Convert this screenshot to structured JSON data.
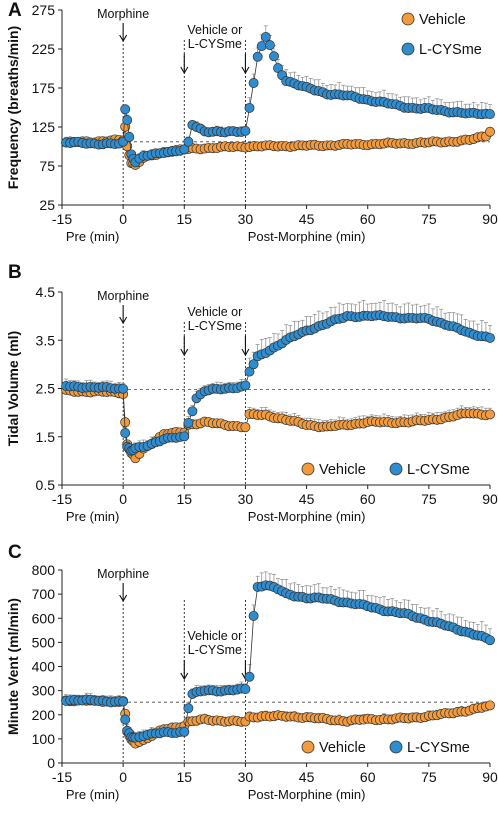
{
  "colors": {
    "vehicle": "#f29a3c",
    "lcysme": "#2e8ccf",
    "marker_edge": "#333333"
  },
  "chart_data": [
    {
      "type": "line",
      "panel_label": "A",
      "ylabel": "Frequency (breaths/min)",
      "xlabel_pre": "Pre (min)",
      "xlabel_post": "Post-Morphine (min)",
      "xlim": [
        -15,
        90
      ],
      "ylim": [
        25,
        275
      ],
      "xticks": [
        -15,
        0,
        15,
        30,
        45,
        60,
        75,
        90
      ],
      "yticks": [
        25,
        75,
        125,
        175,
        225,
        275
      ],
      "baseline": 106,
      "event_lines": [
        0,
        15,
        30
      ],
      "annotations": [
        {
          "text": "Morphine",
          "x": 0
        },
        {
          "text": "Vehicle or",
          "text2": "L-CYSme",
          "x": 15
        }
      ],
      "legend": "top-right",
      "series": [
        {
          "name": "Vehicle",
          "color_key": "vehicle",
          "points": [
            [
              -14,
              105
            ],
            [
              0,
              108
            ],
            [
              0.5,
              125
            ],
            [
              1,
              100
            ],
            [
              2,
              80
            ],
            [
              3,
              76
            ],
            [
              5,
              85
            ],
            [
              10,
              93
            ],
            [
              15,
              96
            ],
            [
              20,
              98
            ],
            [
              30,
              100
            ],
            [
              45,
              101
            ],
            [
              60,
              103
            ],
            [
              75,
              105
            ],
            [
              85,
              108
            ],
            [
              89,
              114
            ],
            [
              90,
              120
            ]
          ],
          "err": 5
        },
        {
          "name": "L-CYSme",
          "color_key": "lcysme",
          "points": [
            [
              -14,
              105
            ],
            [
              -1,
              103
            ],
            [
              0,
              105
            ],
            [
              0.5,
              148
            ],
            [
              1,
              135
            ],
            [
              2,
              90
            ],
            [
              3,
              80
            ],
            [
              5,
              87
            ],
            [
              10,
              93
            ],
            [
              15,
              95
            ],
            [
              16,
              105
            ],
            [
              17,
              128
            ],
            [
              20,
              120
            ],
            [
              25,
              118
            ],
            [
              30,
              120
            ],
            [
              31,
              150
            ],
            [
              33,
              215
            ],
            [
              35,
              240
            ],
            [
              36,
              230
            ],
            [
              38,
              200
            ],
            [
              40,
              185
            ],
            [
              45,
              175
            ],
            [
              50,
              168
            ],
            [
              55,
              165
            ],
            [
              60,
              160
            ],
            [
              65,
              155
            ],
            [
              70,
              150
            ],
            [
              75,
              148
            ],
            [
              80,
              145
            ],
            [
              85,
              142
            ],
            [
              90,
              142
            ]
          ],
          "err": 14
        }
      ]
    },
    {
      "type": "line",
      "panel_label": "B",
      "ylabel": "Tidal Volume (ml)",
      "xlabel_pre": "Pre (min)",
      "xlabel_post": "Post-Morphine (min)",
      "xlim": [
        -15,
        90
      ],
      "ylim": [
        0.5,
        4.5
      ],
      "xticks": [
        -15,
        0,
        15,
        30,
        45,
        60,
        75,
        90
      ],
      "yticks": [
        0.5,
        1.5,
        2.5,
        3.5,
        4.5
      ],
      "baseline": 2.48,
      "event_lines": [
        0,
        15,
        30
      ],
      "annotations": [
        {
          "text": "Morphine",
          "x": 0
        },
        {
          "text": "Vehicle or",
          "text2": "L-CYSme",
          "x": 15
        }
      ],
      "legend": "bottom-right",
      "series": [
        {
          "name": "Vehicle",
          "color_key": "vehicle",
          "points": [
            [
              -14,
              2.45
            ],
            [
              -1,
              2.42
            ],
            [
              0,
              2.4
            ],
            [
              0.5,
              1.8
            ],
            [
              1,
              1.35
            ],
            [
              2,
              1.15
            ],
            [
              3,
              1.05
            ],
            [
              5,
              1.25
            ],
            [
              10,
              1.55
            ],
            [
              15,
              1.6
            ],
            [
              16,
              1.75
            ],
            [
              20,
              1.8
            ],
            [
              25,
              1.75
            ],
            [
              30,
              1.7
            ],
            [
              31,
              1.95
            ],
            [
              35,
              1.95
            ],
            [
              45,
              1.75
            ],
            [
              50,
              1.7
            ],
            [
              55,
              1.75
            ],
            [
              60,
              1.8
            ],
            [
              70,
              1.8
            ],
            [
              80,
              1.9
            ],
            [
              85,
              2.0
            ],
            [
              90,
              1.95
            ]
          ],
          "err": 0.15
        },
        {
          "name": "L-CYSme",
          "color_key": "lcysme",
          "points": [
            [
              -14,
              2.55
            ],
            [
              -1,
              2.5
            ],
            [
              0,
              2.5
            ],
            [
              0.5,
              1.6
            ],
            [
              1,
              1.3
            ],
            [
              2,
              1.2
            ],
            [
              3,
              1.25
            ],
            [
              5,
              1.3
            ],
            [
              10,
              1.45
            ],
            [
              15,
              1.5
            ],
            [
              16,
              1.8
            ],
            [
              18,
              2.3
            ],
            [
              20,
              2.45
            ],
            [
              25,
              2.5
            ],
            [
              30,
              2.55
            ],
            [
              31,
              2.85
            ],
            [
              33,
              3.15
            ],
            [
              35,
              3.25
            ],
            [
              40,
              3.5
            ],
            [
              45,
              3.7
            ],
            [
              50,
              3.85
            ],
            [
              55,
              4.0
            ],
            [
              60,
              4.0
            ],
            [
              65,
              4.0
            ],
            [
              70,
              3.95
            ],
            [
              75,
              3.95
            ],
            [
              80,
              3.8
            ],
            [
              85,
              3.65
            ],
            [
              90,
              3.55
            ]
          ],
          "err": 0.3
        }
      ]
    },
    {
      "type": "line",
      "panel_label": "C",
      "ylabel": "Minute Vent (ml/min)",
      "xlabel_pre": "Pre (min)",
      "xlabel_post": "Post-Morphine (min)",
      "xlim": [
        -15,
        90
      ],
      "ylim": [
        0,
        800
      ],
      "xticks": [
        -15,
        0,
        15,
        30,
        45,
        60,
        75,
        90
      ],
      "yticks": [
        0,
        100,
        200,
        300,
        400,
        500,
        600,
        700,
        800
      ],
      "baseline": 252,
      "event_lines": [
        0,
        15,
        30
      ],
      "annotations": [
        {
          "text": "Morphine",
          "x": 0
        },
        {
          "text": "Vehicle or",
          "text2": "L-CYSme",
          "x": 15
        }
      ],
      "legend": "bottom-right",
      "series": [
        {
          "name": "Vehicle",
          "color_key": "vehicle",
          "points": [
            [
              -14,
              260
            ],
            [
              -1,
              255
            ],
            [
              0,
              255
            ],
            [
              0.5,
              200
            ],
            [
              1,
              130
            ],
            [
              2,
              95
            ],
            [
              3,
              85
            ],
            [
              5,
              95
            ],
            [
              10,
              140
            ],
            [
              15,
              155
            ],
            [
              16,
              170
            ],
            [
              20,
              180
            ],
            [
              25,
              175
            ],
            [
              30,
              170
            ],
            [
              31,
              190
            ],
            [
              35,
              195
            ],
            [
              45,
              190
            ],
            [
              50,
              180
            ],
            [
              55,
              175
            ],
            [
              60,
              180
            ],
            [
              70,
              185
            ],
            [
              80,
              205
            ],
            [
              85,
              220
            ],
            [
              90,
              235
            ]
          ],
          "err": 20
        },
        {
          "name": "L-CYSme",
          "color_key": "lcysme",
          "points": [
            [
              -14,
              262
            ],
            [
              -1,
              255
            ],
            [
              0,
              255
            ],
            [
              0.5,
              180
            ],
            [
              1,
              130
            ],
            [
              2,
              110
            ],
            [
              3,
              105
            ],
            [
              5,
              115
            ],
            [
              10,
              125
            ],
            [
              15,
              130
            ],
            [
              16,
              230
            ],
            [
              17,
              285
            ],
            [
              20,
              300
            ],
            [
              25,
              300
            ],
            [
              30,
              305
            ],
            [
              31,
              360
            ],
            [
              32,
              610
            ],
            [
              33,
              730
            ],
            [
              35,
              740
            ],
            [
              38,
              720
            ],
            [
              40,
              700
            ],
            [
              45,
              685
            ],
            [
              50,
              680
            ],
            [
              55,
              665
            ],
            [
              60,
              650
            ],
            [
              65,
              630
            ],
            [
              70,
              615
            ],
            [
              75,
              590
            ],
            [
              80,
              565
            ],
            [
              85,
              540
            ],
            [
              90,
              510
            ]
          ],
          "err": 55
        }
      ]
    }
  ]
}
